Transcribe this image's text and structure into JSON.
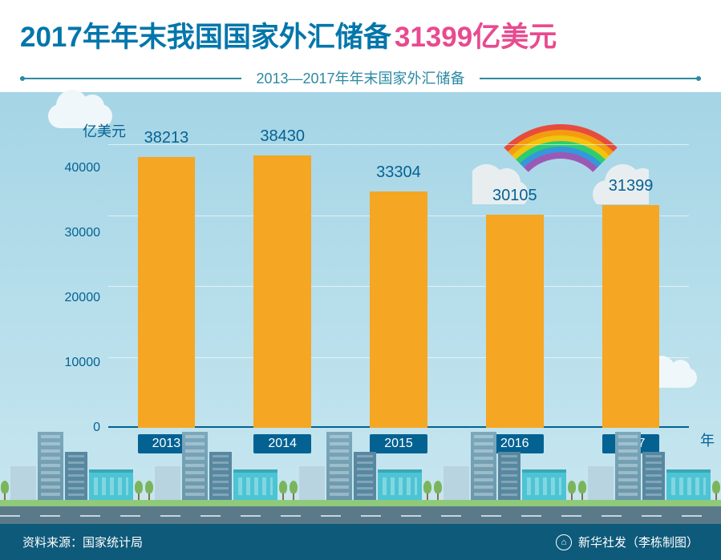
{
  "header": {
    "title_main": "2017年年末我国国家外汇储备",
    "title_highlight": "31399亿美元",
    "subtitle": "2013—2017年年末国家外汇储备",
    "title_main_color": "#0376ab",
    "title_highlight_color": "#e84a8f"
  },
  "chart": {
    "type": "bar",
    "y_axis_label": "亿美元",
    "x_axis_label": "年",
    "y_ticks": [
      0,
      10000,
      20000,
      30000,
      40000
    ],
    "y_max": 40000,
    "categories": [
      "2013",
      "2014",
      "2015",
      "2016",
      "2017"
    ],
    "values": [
      38213,
      38430,
      33304,
      30105,
      31399
    ],
    "bar_color": "#f5a623",
    "axis_color": "#046293",
    "text_color": "#046293",
    "grid_color": "#ffffff",
    "background_gradient": [
      "#a5d5e6",
      "#c8e7f0"
    ],
    "label_bg_color": "#046293",
    "label_text_color": "#ffffff",
    "value_fontsize": 20,
    "tick_fontsize": 16,
    "label_fontsize": 16
  },
  "rainbow": {
    "colors": [
      "#e74c3c",
      "#f39c12",
      "#f1c40f",
      "#2ecc71",
      "#3498db",
      "#9b59b6"
    ],
    "cloud_color": "#e8eef0"
  },
  "footer": {
    "source": "资料来源：国家统计局",
    "credit": "新华社发（李栋制图）",
    "bg_color": "#0e5a7a",
    "text_color": "#ffffff"
  }
}
